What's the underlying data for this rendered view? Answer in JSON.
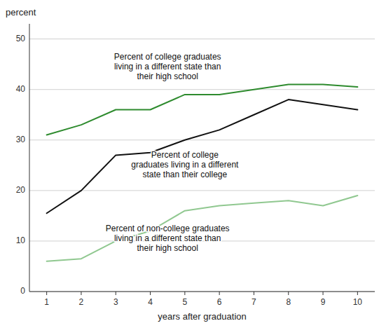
{
  "chart_data": {
    "type": "line",
    "x": [
      1,
      2,
      3,
      4,
      5,
      6,
      7,
      8,
      9,
      10
    ],
    "series": [
      {
        "color": "#2e8b2e",
        "values": [
          31,
          33,
          36,
          36,
          39,
          39,
          40,
          41,
          41,
          40.5
        ]
      },
      {
        "color": "#111111",
        "values": [
          15.5,
          20,
          27,
          27.5,
          30,
          32,
          35,
          38,
          37,
          36
        ]
      },
      {
        "color": "#90c890",
        "values": [
          6,
          6.5,
          10,
          12,
          16,
          17,
          17.5,
          18,
          17,
          19
        ]
      }
    ],
    "xlabel": "years after graduation",
    "ylabel": "percent",
    "xlim": [
      0.5,
      10.5
    ],
    "ylim": [
      0,
      53
    ],
    "xticks": [
      1,
      2,
      3,
      4,
      5,
      6,
      7,
      8,
      9,
      10
    ],
    "yticks": [
      0,
      10,
      20,
      30,
      40,
      50
    ],
    "grid": true,
    "annotations": [
      {
        "text": "Percent of college graduates\nliving in a different state than\ntheir high school",
        "x": 4.5,
        "y": 47.5
      },
      {
        "text": "Percent of college\ngraduates living in a different\nstate than their college",
        "x": 5.0,
        "y": 28.0
      },
      {
        "text": "Percent of non-college graduates\nliving in a different state than\ntheir high school",
        "x": 4.5,
        "y": 13.5
      }
    ]
  }
}
